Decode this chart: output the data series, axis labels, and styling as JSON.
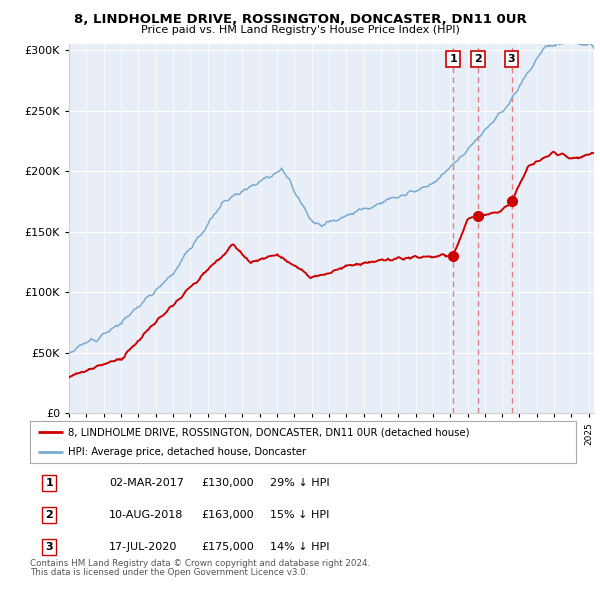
{
  "title": "8, LINDHOLME DRIVE, ROSSINGTON, DONCASTER, DN11 0UR",
  "subtitle": "Price paid vs. HM Land Registry's House Price Index (HPI)",
  "property_label": "8, LINDHOLME DRIVE, ROSSINGTON, DONCASTER, DN11 0UR (detached house)",
  "hpi_label": "HPI: Average price, detached house, Doncaster",
  "transactions": [
    {
      "num": 1,
      "date": "02-MAR-2017",
      "price": 130000,
      "pct": "29% ↓ HPI",
      "year": 2017.17
    },
    {
      "num": 2,
      "date": "10-AUG-2018",
      "price": 163000,
      "pct": "15% ↓ HPI",
      "year": 2018.61
    },
    {
      "num": 3,
      "date": "17-JUL-2020",
      "price": 175000,
      "pct": "14% ↓ HPI",
      "year": 2020.54
    }
  ],
  "footnote1": "Contains HM Land Registry data © Crown copyright and database right 2024.",
  "footnote2": "This data is licensed under the Open Government Licence v3.0.",
  "property_color": "#cc0000",
  "hpi_color": "#7aaad0",
  "background_color": "#e8eef8",
  "ylim_max": 300000,
  "xlim_start": 1995.0,
  "xlim_end": 2025.3
}
